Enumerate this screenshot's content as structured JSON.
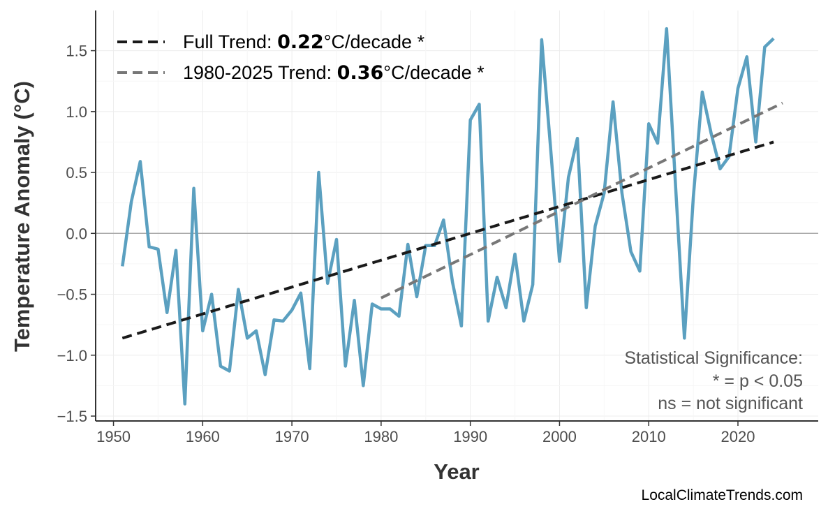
{
  "chart_data": {
    "type": "line",
    "xlabel": "Year",
    "ylabel": "Temperature Anomaly (°C)",
    "xlim": [
      1948,
      2029
    ],
    "ylim": [
      -1.54,
      1.83
    ],
    "xticks": [
      1950,
      1960,
      1970,
      1980,
      1990,
      2000,
      2010,
      2020
    ],
    "yticks": [
      -1.5,
      -1.0,
      -0.5,
      0.0,
      0.5,
      1.0,
      1.5
    ],
    "ytick_labels": [
      "−1.5",
      "−1.0",
      "−0.5",
      "0.0",
      "0.5",
      "1.0",
      "1.5"
    ],
    "grid": true,
    "legend_placement": "top-left",
    "x": [
      1951,
      1952,
      1953,
      1954,
      1955,
      1956,
      1957,
      1958,
      1959,
      1960,
      1961,
      1962,
      1963,
      1964,
      1965,
      1966,
      1967,
      1968,
      1969,
      1970,
      1971,
      1972,
      1973,
      1974,
      1975,
      1976,
      1977,
      1978,
      1979,
      1980,
      1981,
      1982,
      1983,
      1984,
      1985,
      1986,
      1987,
      1988,
      1989,
      1990,
      1991,
      1992,
      1993,
      1994,
      1995,
      1996,
      1997,
      1998,
      1999,
      2000,
      2001,
      2002,
      2003,
      2004,
      2005,
      2006,
      2007,
      2008,
      2009,
      2010,
      2011,
      2012,
      2013,
      2014,
      2015,
      2016,
      2017,
      2018,
      2019,
      2020,
      2021,
      2022,
      2023,
      2024
    ],
    "series": [
      {
        "values": [
          -0.27,
          0.26,
          0.59,
          -0.11,
          -0.13,
          -0.65,
          -0.14,
          -1.4,
          0.37,
          -0.8,
          -0.5,
          -1.09,
          -1.13,
          -0.46,
          -0.86,
          -0.8,
          -1.16,
          -0.71,
          -0.72,
          -0.63,
          -0.49,
          -1.11,
          0.5,
          -0.41,
          -0.05,
          -1.09,
          -0.55,
          -1.25,
          -0.58,
          -0.62,
          -0.62,
          -0.68,
          -0.09,
          -0.52,
          -0.1,
          -0.1,
          0.11,
          -0.4,
          -0.76,
          0.93,
          1.06,
          -0.72,
          -0.36,
          -0.61,
          -0.17,
          -0.72,
          -0.42,
          1.59,
          0.7,
          -0.23,
          0.46,
          0.78,
          -0.61,
          0.06,
          0.33,
          1.08,
          0.33,
          -0.15,
          -0.31,
          0.9,
          0.74,
          1.68,
          0.4,
          -0.86,
          0.3,
          1.16,
          0.82,
          0.53,
          0.63,
          1.19,
          1.45,
          0.75,
          1.53,
          1.6
        ]
      }
    ],
    "trends": [
      {
        "label_prefix": "Full Trend: ",
        "value": "0.22",
        "label_suffix": "°C/decade *",
        "x": [
          1951,
          2024
        ],
        "y": [
          -0.86,
          0.75
        ]
      },
      {
        "label_prefix": "1980-2025 Trend: ",
        "value": "0.36",
        "label_suffix": "°C/decade *",
        "x": [
          1980,
          2025
        ],
        "y": [
          -0.53,
          1.07
        ]
      }
    ],
    "colors": {
      "series": "#5ba0c0",
      "full_trend": "#1a1a1a",
      "recent_trend": "#777777"
    },
    "annotation": [
      "Statistical Significance:",
      "* = p < 0.05",
      "ns = not significant"
    ]
  },
  "watermark": "LocalClimateTrends.com"
}
